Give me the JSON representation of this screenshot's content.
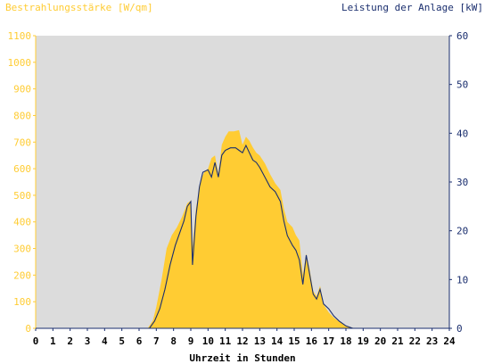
{
  "colors": {
    "background": "#ffffff",
    "plot_background": "#dcdcdc",
    "irradiance": "#ffcc33",
    "power": "#1a2e6e",
    "left_text": "#ffcc33",
    "right_text": "#1a2e6e",
    "xaxis_text": "#000000"
  },
  "chart_data": {
    "type": "area",
    "left_axis_title": "Bestrahlungsstärke [W/qm]",
    "right_axis_title": "Leistung der Anlage [kW]",
    "xlabel": "Uhrzeit in Stunden",
    "xlim": [
      0,
      24
    ],
    "ylim_left": [
      0,
      1100
    ],
    "ylim_right": [
      0,
      60
    ],
    "x_ticks": [
      "0",
      "1",
      "2",
      "3",
      "4",
      "5",
      "6",
      "7",
      "8",
      "9",
      "10",
      "11",
      "12",
      "13",
      "14",
      "15",
      "16",
      "17",
      "18",
      "19",
      "20",
      "21",
      "22",
      "23",
      "24"
    ],
    "y_ticks_left": [
      "0",
      "100",
      "200",
      "300",
      "400",
      "500",
      "600",
      "700",
      "800",
      "900",
      "1000",
      "1100"
    ],
    "y_ticks_right": [
      "0",
      "10",
      "20",
      "30",
      "40",
      "50",
      "60"
    ],
    "grid": false,
    "series": [
      {
        "name": "Bestrahlungsstärke",
        "axis": "left",
        "style": "filled-area",
        "points": [
          [
            0,
            0
          ],
          [
            6.5,
            0
          ],
          [
            6.8,
            30
          ],
          [
            7.0,
            80
          ],
          [
            7.3,
            180
          ],
          [
            7.6,
            300
          ],
          [
            7.9,
            350
          ],
          [
            8.2,
            380
          ],
          [
            8.5,
            420
          ],
          [
            8.8,
            470
          ],
          [
            9.0,
            480
          ],
          [
            9.1,
            300
          ],
          [
            9.3,
            450
          ],
          [
            9.6,
            560
          ],
          [
            9.8,
            590
          ],
          [
            10.0,
            600
          ],
          [
            10.2,
            640
          ],
          [
            10.4,
            650
          ],
          [
            10.6,
            580
          ],
          [
            10.8,
            690
          ],
          [
            11.0,
            720
          ],
          [
            11.2,
            740
          ],
          [
            11.5,
            740
          ],
          [
            11.8,
            745
          ],
          [
            12.0,
            690
          ],
          [
            12.2,
            720
          ],
          [
            12.4,
            705
          ],
          [
            12.6,
            680
          ],
          [
            12.8,
            660
          ],
          [
            13.0,
            650
          ],
          [
            13.3,
            620
          ],
          [
            13.6,
            580
          ],
          [
            13.9,
            545
          ],
          [
            14.2,
            520
          ],
          [
            14.4,
            450
          ],
          [
            14.6,
            400
          ],
          [
            14.9,
            380
          ],
          [
            15.1,
            350
          ],
          [
            15.3,
            330
          ],
          [
            15.5,
            200
          ],
          [
            15.7,
            280
          ],
          [
            15.9,
            220
          ],
          [
            16.1,
            140
          ],
          [
            16.3,
            120
          ],
          [
            16.5,
            160
          ],
          [
            16.7,
            90
          ],
          [
            17.0,
            60
          ],
          [
            17.3,
            40
          ],
          [
            17.6,
            25
          ],
          [
            18.0,
            10
          ],
          [
            18.5,
            0
          ],
          [
            24,
            0
          ]
        ]
      },
      {
        "name": "Leistung der Anlage",
        "axis": "right",
        "style": "line",
        "points": [
          [
            0,
            0
          ],
          [
            6.6,
            0
          ],
          [
            6.9,
            1.5
          ],
          [
            7.2,
            4
          ],
          [
            7.5,
            8
          ],
          [
            7.8,
            13
          ],
          [
            8.1,
            17
          ],
          [
            8.4,
            20
          ],
          [
            8.6,
            22
          ],
          [
            8.8,
            25
          ],
          [
            9.0,
            26
          ],
          [
            9.1,
            13
          ],
          [
            9.3,
            23
          ],
          [
            9.5,
            29
          ],
          [
            9.7,
            32
          ],
          [
            10.0,
            32.5
          ],
          [
            10.2,
            31
          ],
          [
            10.4,
            34
          ],
          [
            10.6,
            31
          ],
          [
            10.8,
            35.5
          ],
          [
            11.0,
            36.5
          ],
          [
            11.3,
            37
          ],
          [
            11.6,
            37
          ],
          [
            11.8,
            36.5
          ],
          [
            12.0,
            36
          ],
          [
            12.2,
            37.5
          ],
          [
            12.4,
            36
          ],
          [
            12.6,
            34.5
          ],
          [
            12.8,
            34
          ],
          [
            13.0,
            33
          ],
          [
            13.3,
            31
          ],
          [
            13.6,
            29
          ],
          [
            13.9,
            28
          ],
          [
            14.2,
            26
          ],
          [
            14.4,
            22
          ],
          [
            14.6,
            19
          ],
          [
            14.9,
            17
          ],
          [
            15.1,
            16
          ],
          [
            15.3,
            14
          ],
          [
            15.5,
            9
          ],
          [
            15.7,
            15
          ],
          [
            15.9,
            11
          ],
          [
            16.1,
            7
          ],
          [
            16.3,
            6
          ],
          [
            16.5,
            8
          ],
          [
            16.7,
            5
          ],
          [
            17.0,
            4
          ],
          [
            17.3,
            2.5
          ],
          [
            17.6,
            1.5
          ],
          [
            18.0,
            0.5
          ],
          [
            18.4,
            0
          ],
          [
            24,
            0
          ]
        ]
      }
    ]
  }
}
